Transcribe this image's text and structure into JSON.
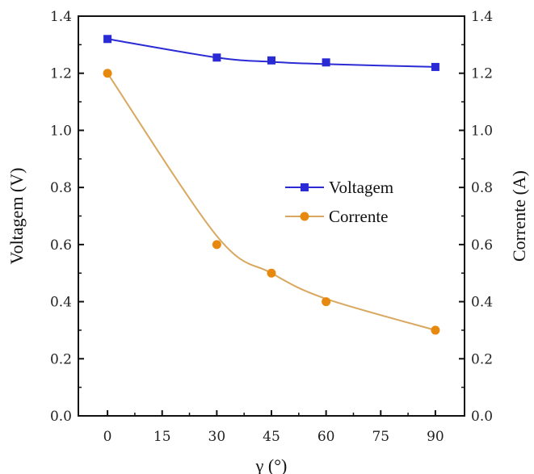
{
  "chart_data": {
    "type": "line",
    "x": [
      0,
      30,
      45,
      60,
      90
    ],
    "xlabel": "γ (°)",
    "xlim": [
      -8,
      98
    ],
    "xticks": [
      "0",
      "15",
      "30",
      "45",
      "60",
      "75",
      "90"
    ],
    "xtick_values": [
      0,
      15,
      30,
      45,
      60,
      75,
      90
    ],
    "ylabel": "Voltagem (V)",
    "ylabel_right": "Corrente (A)",
    "ylim": [
      0,
      1.4
    ],
    "yticks": [
      "0.0",
      "0.2",
      "0.4",
      "0.6",
      "0.8",
      "1.0",
      "1.2",
      "1.4"
    ],
    "ytick_values": [
      0,
      0.2,
      0.4,
      0.6,
      0.8,
      1.0,
      1.2,
      1.4
    ],
    "grid": false,
    "legend_position": "center-right",
    "series": [
      {
        "name": "Voltagem",
        "axis": "left",
        "marker": "square",
        "color": "#2b2bd6",
        "values": [
          1.32,
          1.255,
          1.245,
          1.238,
          1.222
        ],
        "fit": [
          1.32,
          1.255,
          1.24,
          1.232,
          1.222
        ]
      },
      {
        "name": "Corrente",
        "axis": "right",
        "marker": "circle",
        "color": "#e8890f",
        "line_color": "#d9a860",
        "values": [
          1.2,
          0.6,
          0.5,
          0.4,
          0.3
        ],
        "fit": [
          1.2,
          0.63,
          0.5,
          0.41,
          0.3
        ]
      }
    ]
  }
}
